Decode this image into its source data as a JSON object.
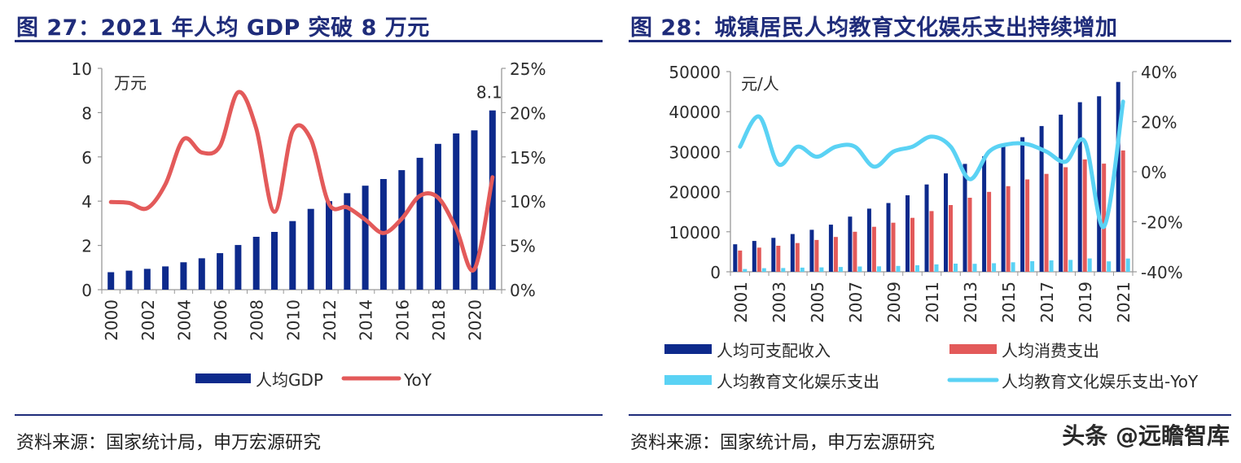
{
  "watermark": "头条 @远瞻智库",
  "charts": [
    {
      "title": "图 27：2021 年人均 GDP 突破 8 万元",
      "source": "资料来源：国家统计局，申万宏源研究",
      "chart_data": {
        "type": "bar",
        "y_unit_label": "万元",
        "categories": [
          "2000",
          "2001",
          "2002",
          "2003",
          "2004",
          "2005",
          "2006",
          "2007",
          "2008",
          "2009",
          "2010",
          "2011",
          "2012",
          "2013",
          "2014",
          "2015",
          "2016",
          "2017",
          "2018",
          "2019",
          "2020",
          "2021"
        ],
        "x_tick_labels": [
          "2000",
          "2002",
          "2004",
          "2006",
          "2008",
          "2010",
          "2012",
          "2014",
          "2016",
          "2018",
          "2020"
        ],
        "ylim_left": [
          0,
          10
        ],
        "yticks_left": [
          "0",
          "2",
          "4",
          "6",
          "8",
          "10"
        ],
        "ylim_right": [
          0,
          25
        ],
        "yticks_right": [
          "0%",
          "5%",
          "10%",
          "15%",
          "20%",
          "25%"
        ],
        "series": [
          {
            "name": "人均GDP",
            "type": "bar",
            "axis": "left",
            "color": "#0d2a8c",
            "values": [
              0.79,
              0.86,
              0.94,
              1.05,
              1.24,
              1.42,
              1.65,
              2.02,
              2.39,
              2.61,
              3.1,
              3.65,
              4.0,
              4.36,
              4.7,
              5.0,
              5.4,
              5.96,
              6.59,
              7.06,
              7.2,
              8.1
            ]
          },
          {
            "name": "YoY",
            "type": "line",
            "axis": "right",
            "color": "#e35a5a",
            "values": [
              9.9,
              9.8,
              9.2,
              11.9,
              17.0,
              15.5,
              16.2,
              22.3,
              18.2,
              8.8,
              17.9,
              17.0,
              9.7,
              9.3,
              7.9,
              6.4,
              8.0,
              10.6,
              10.4,
              6.9,
              2.3,
              12.7
            ]
          }
        ],
        "annotations": [
          {
            "category": "2021",
            "text": "8.1"
          }
        ],
        "legend_position": "bottom",
        "grid": false
      }
    },
    {
      "title": "图 28：城镇居民人均教育文化娱乐支出持续增加",
      "source": "资料来源：国家统计局，申万宏源研究",
      "chart_data": {
        "type": "bar",
        "y_unit_label": "元/人",
        "categories": [
          "2001",
          "2002",
          "2003",
          "2004",
          "2005",
          "2006",
          "2007",
          "2008",
          "2009",
          "2010",
          "2011",
          "2012",
          "2013",
          "2014",
          "2015",
          "2016",
          "2017",
          "2018",
          "2019",
          "2020",
          "2021"
        ],
        "x_tick_labels": [
          "2001",
          "2003",
          "2005",
          "2007",
          "2009",
          "2011",
          "2013",
          "2015",
          "2017",
          "2019",
          "2021"
        ],
        "ylim_left": [
          0,
          50000
        ],
        "yticks_left": [
          "0",
          "10000",
          "20000",
          "30000",
          "40000",
          "50000"
        ],
        "ylim_right": [
          -40,
          40
        ],
        "yticks_right": [
          "-40%",
          "-20%",
          "0%",
          "20%",
          "40%"
        ],
        "series": [
          {
            "name": "人均可支配收入",
            "type": "bar",
            "axis": "left",
            "color": "#0d2a8c",
            "values": [
              6860,
              7703,
              8472,
              9422,
              10493,
              11759,
              13786,
              15781,
              17175,
              19109,
              21810,
              24565,
              26955,
              28844,
              31195,
              33616,
              36396,
              39251,
              42359,
              43834,
              47412
            ]
          },
          {
            "name": "人均消费支出",
            "type": "bar",
            "axis": "left",
            "color": "#e35a5a",
            "values": [
              5309,
              6030,
              6511,
              7182,
              7943,
              8697,
              9997,
              11243,
              12265,
              13471,
              15161,
              16674,
              18488,
              19968,
              21392,
              23079,
              24445,
              26112,
              28063,
              27007,
              30307
            ]
          },
          {
            "name": "人均教育文化娱乐支出",
            "type": "bar",
            "axis": "left",
            "color": "#5ad2f4",
            "values": [
              690,
              903,
              934,
              1032,
              1097,
              1203,
              1329,
              1358,
              1472,
              1628,
              1852,
              2033,
              1988,
              2142,
              2383,
              2638,
              2847,
              2974,
              3328,
              2592,
              3322
            ]
          },
          {
            "name": "人均教育文化娱乐支出-YoY",
            "type": "line",
            "axis": "right",
            "color": "#5ad2f4",
            "values": [
              10,
              22,
              3,
              10,
              6,
              10,
              10,
              2,
              8,
              10,
              14,
              10,
              -3,
              8,
              11,
              11,
              8,
              4,
              12,
              -22,
              28
            ]
          }
        ],
        "legend_position": "bottom",
        "grid": false
      }
    }
  ]
}
